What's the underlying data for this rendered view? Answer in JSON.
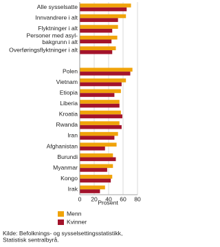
{
  "chart_data": {
    "type": "hbar",
    "categories": [
      "Alle sysselsatte",
      "Innvandrere i alt",
      "Flyktninger i alt",
      "Personer med asyl-\nbakgrunn i alt",
      "Overføringsflyktninger i alt",
      null,
      "Polen",
      "Vietnam",
      "Etiopia",
      "Liberia",
      "Kroatia",
      "Rwanda",
      "Iran",
      "Afghanistan",
      "Burundi",
      "Myanmar",
      "Kongo",
      "Irak"
    ],
    "series": [
      {
        "name": "Menn",
        "color": "#f0a30a",
        "values": [
          71,
          64,
          53,
          52,
          50,
          null,
          73,
          64,
          57,
          55,
          57,
          55,
          53,
          51,
          46,
          46,
          45,
          35
        ]
      },
      {
        "name": "Kvinner",
        "color": "#a3132b",
        "values": [
          65,
          53,
          45,
          44,
          45,
          null,
          70,
          58,
          48,
          55,
          59,
          58,
          48,
          35,
          50,
          38,
          43,
          28
        ]
      }
    ],
    "xlim": [
      0,
      80
    ],
    "xticks": [
      0,
      20,
      40,
      60,
      80
    ],
    "grid": true,
    "xlabel": "Prosent",
    "source": "Kilde: Befolknings- og sysselsettingsstatistikk,\nStatistisk sentralbyrå."
  }
}
